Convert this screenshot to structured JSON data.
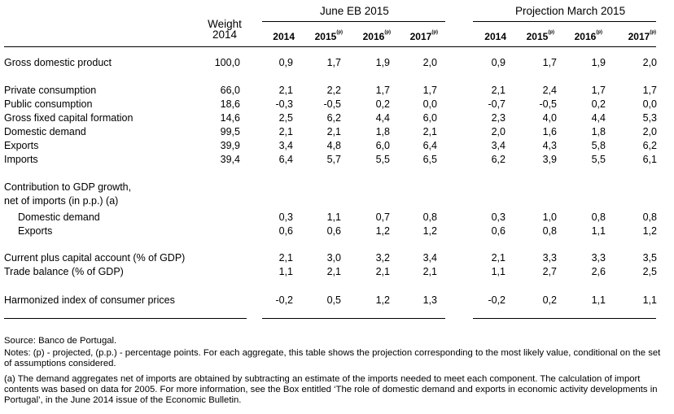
{
  "header": {
    "weight_line1": "Weight",
    "weight_line2": "2014",
    "group1": "June EB 2015",
    "group2": "Projection March 2015",
    "years": [
      {
        "year": "2014",
        "sup": ""
      },
      {
        "year": "2015",
        "sup": "(p)"
      },
      {
        "year": "2016",
        "sup": "(p)"
      },
      {
        "year": "2017",
        "sup": "(p)"
      },
      {
        "year": "2014",
        "sup": ""
      },
      {
        "year": "2015",
        "sup": "(p)"
      },
      {
        "year": "2016",
        "sup": "(p)"
      },
      {
        "year": "2017",
        "sup": "(p)"
      }
    ]
  },
  "rows": [
    {
      "label": "Gross domestic product",
      "indent": false,
      "weight": "100,0",
      "vals": [
        "0,9",
        "1,7",
        "1,9",
        "2,0",
        "0,9",
        "1,7",
        "1,9",
        "2,0"
      ]
    },
    {
      "label": "Private consumption",
      "indent": false,
      "weight": "66,0",
      "vals": [
        "2,1",
        "2,2",
        "1,7",
        "1,7",
        "2,1",
        "2,4",
        "1,7",
        "1,7"
      ]
    },
    {
      "label": "Public consumption",
      "indent": false,
      "weight": "18,6",
      "vals": [
        "-0,3",
        "-0,5",
        "0,2",
        "0,0",
        "-0,7",
        "-0,5",
        "0,2",
        "0,0"
      ]
    },
    {
      "label": "Gross fixed capital formation",
      "indent": false,
      "weight": "14,6",
      "vals": [
        "2,5",
        "6,2",
        "4,4",
        "6,0",
        "2,3",
        "4,0",
        "4,4",
        "5,3"
      ]
    },
    {
      "label": "Domestic demand",
      "indent": false,
      "weight": "99,5",
      "vals": [
        "2,1",
        "2,1",
        "1,8",
        "2,1",
        "2,0",
        "1,6",
        "1,8",
        "2,0"
      ]
    },
    {
      "label": "Exports",
      "indent": false,
      "weight": "39,9",
      "vals": [
        "3,4",
        "4,8",
        "6,0",
        "6,4",
        "3,4",
        "4,3",
        "5,8",
        "6,2"
      ]
    },
    {
      "label": "Imports",
      "indent": false,
      "weight": "39,4",
      "vals": [
        "6,4",
        "5,7",
        "5,5",
        "6,5",
        "6,2",
        "3,9",
        "5,5",
        "6,1"
      ]
    },
    {
      "label": "Contribution to GDP growth,",
      "indent": false,
      "weight": "",
      "vals": [
        "",
        "",
        "",
        "",
        "",
        "",
        "",
        ""
      ]
    },
    {
      "label": "net of imports (in p.p.) (a)",
      "indent": false,
      "weight": "",
      "vals": [
        "",
        "",
        "",
        "",
        "",
        "",
        "",
        ""
      ]
    },
    {
      "label": "Domestic demand",
      "indent": true,
      "weight": "",
      "vals": [
        "0,3",
        "1,1",
        "0,7",
        "0,8",
        "0,3",
        "1,0",
        "0,8",
        "0,8"
      ]
    },
    {
      "label": "Exports",
      "indent": true,
      "weight": "",
      "vals": [
        "0,6",
        "0,6",
        "1,2",
        "1,2",
        "0,6",
        "0,8",
        "1,1",
        "1,2"
      ]
    },
    {
      "label": "Current plus capital account (% of GDP)",
      "indent": false,
      "weight": "",
      "vals": [
        "2,1",
        "3,0",
        "3,2",
        "3,4",
        "2,1",
        "3,3",
        "3,3",
        "3,5"
      ]
    },
    {
      "label": "Trade balance (% of GDP)",
      "indent": false,
      "weight": "",
      "vals": [
        "1,1",
        "2,1",
        "2,1",
        "2,1",
        "1,1",
        "2,7",
        "2,6",
        "2,5"
      ]
    },
    {
      "label": "Harmonized index of consumer prices",
      "indent": false,
      "weight": "",
      "vals": [
        "-0,2",
        "0,5",
        "1,2",
        "1,3",
        "-0,2",
        "0,2",
        "1,1",
        "1,1"
      ]
    }
  ],
  "notes": {
    "source": "Source: Banco de Portugal.",
    "notes_p": "Notes: (p) - projected, (p.p.) - percentage points. For each aggregate, this table shows the projection corresponding to the most likely value, conditional on the set of assumptions considered.",
    "note_a": "(a) The demand aggregates net of imports are obtained by subtracting an estimate of the imports needed to meet each component. The calculation of import contents was based on data for 2005. For more information, see the Box entitled ‘The role of domestic demand and exports in economic activity developments in Portugal’, in the June 2014 issue of the Economic Bulletin."
  }
}
